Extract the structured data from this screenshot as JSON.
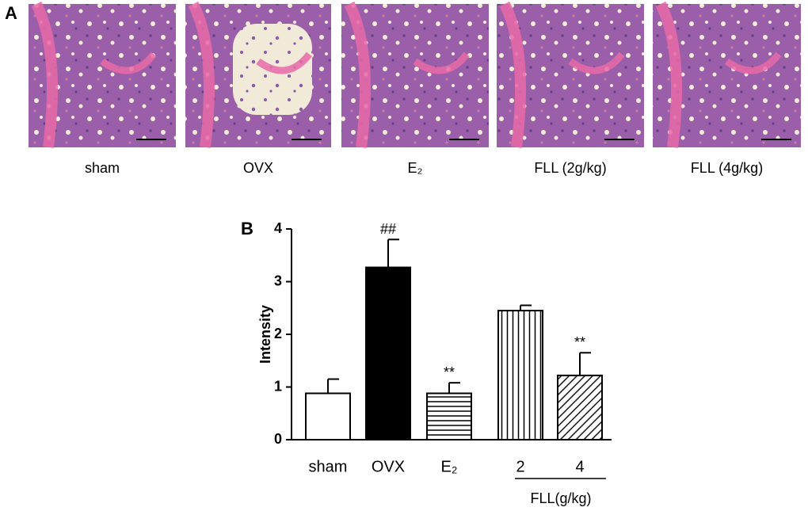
{
  "panel_a": {
    "label": "A",
    "images": [
      {
        "caption": "sham"
      },
      {
        "caption": "OVX"
      },
      {
        "caption": "E₂"
      },
      {
        "caption": "FLL (2g/kg)"
      },
      {
        "caption": "FLL (4g/kg)"
      }
    ]
  },
  "chart_data": {
    "type": "bar",
    "panel_label": "B",
    "ylabel": "Intensity",
    "categories": [
      "sham",
      "OVX",
      "E₂",
      "2",
      "4"
    ],
    "group_label": "FLL(g/kg)",
    "values": [
      0.88,
      3.27,
      0.88,
      2.45,
      1.22
    ],
    "errors": [
      0.27,
      0.53,
      0.2,
      0.1,
      0.43
    ],
    "annotations": [
      null,
      "##",
      "**",
      null,
      "**"
    ],
    "patterns": [
      "none",
      "solid",
      "horizontal",
      "vertical",
      "diagonal"
    ],
    "color": "#000000",
    "ylim": [
      0,
      4
    ],
    "yticks": [
      0,
      1,
      2,
      3,
      4
    ]
  }
}
